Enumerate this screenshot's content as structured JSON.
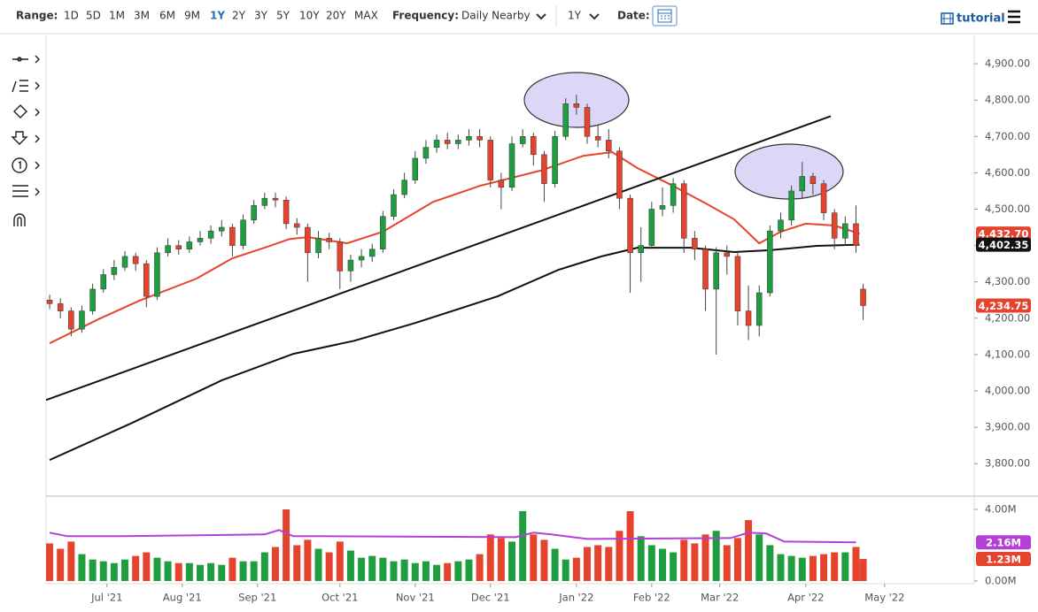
{
  "toolbar": {
    "range_label": "Range:",
    "ranges": [
      "1D",
      "5D",
      "1M",
      "3M",
      "6M",
      "9M",
      "1Y",
      "2Y",
      "3Y",
      "5Y",
      "10Y",
      "20Y",
      "MAX"
    ],
    "active_range": 6,
    "frequency_label": "Frequency:",
    "frequency": "Daily Nearby",
    "period": "1Y",
    "date_label": "Date:",
    "tutorial": "tutorial"
  },
  "chart_data": {
    "type": "candlestick",
    "x": [
      0,
      3,
      6,
      9,
      12,
      15,
      18,
      21,
      24,
      27,
      30,
      33,
      36,
      39,
      42,
      45,
      48,
      51,
      54,
      57,
      60,
      63,
      66,
      69,
      72,
      75,
      78,
      81,
      84,
      87,
      90,
      93,
      96,
      99,
      102,
      105,
      108,
      111,
      114,
      117,
      120,
      123,
      126,
      129,
      132,
      135,
      138,
      141,
      144,
      147,
      150,
      153,
      156,
      159,
      162,
      165,
      168,
      171,
      174,
      177,
      180,
      183,
      186,
      189,
      192,
      195,
      198,
      201,
      204,
      207,
      210,
      213,
      216,
      219,
      222,
      225,
      227
    ],
    "open": [
      4250,
      4240,
      4220,
      4170,
      4220,
      4280,
      4320,
      4340,
      4370,
      4350,
      4260,
      4380,
      4400,
      4390,
      4410,
      4420,
      4440,
      4450,
      4400,
      4470,
      4510,
      4530,
      4525,
      4460,
      4450,
      4380,
      4420,
      4410,
      4330,
      4360,
      4370,
      4390,
      4480,
      4540,
      4580,
      4640,
      4670,
      4690,
      4680,
      4690,
      4700,
      4690,
      4580,
      4560,
      4680,
      4700,
      4650,
      4570,
      4700,
      4790,
      4780,
      4700,
      4690,
      4660,
      4530,
      4380,
      4400,
      4500,
      4510,
      4570,
      4420,
      4390,
      4280,
      4380,
      4370,
      4220,
      4180,
      4270,
      4440,
      4470,
      4550,
      4590,
      4570,
      4490,
      4420,
      4460,
      4280
    ],
    "high": [
      4265,
      4255,
      4230,
      4235,
      4295,
      4335,
      4360,
      4385,
      4380,
      4360,
      4395,
      4420,
      4415,
      4425,
      4440,
      4455,
      4470,
      4460,
      4485,
      4525,
      4545,
      4545,
      4535,
      4475,
      4460,
      4440,
      4435,
      4420,
      4375,
      4390,
      4405,
      4495,
      4555,
      4600,
      4660,
      4690,
      4705,
      4710,
      4705,
      4720,
      4720,
      4700,
      4600,
      4700,
      4720,
      4710,
      4660,
      4715,
      4805,
      4815,
      4790,
      4730,
      4720,
      4670,
      4540,
      4450,
      4520,
      4560,
      4585,
      4580,
      4440,
      4400,
      4395,
      4400,
      4380,
      4290,
      4290,
      4455,
      4490,
      4565,
      4630,
      4600,
      4580,
      4500,
      4480,
      4510,
      4295
    ],
    "low": [
      4225,
      4200,
      4150,
      4160,
      4210,
      4270,
      4305,
      4330,
      4330,
      4230,
      4250,
      4370,
      4375,
      4380,
      4400,
      4405,
      4425,
      4370,
      4390,
      4460,
      4500,
      4505,
      4445,
      4430,
      4300,
      4365,
      4390,
      4280,
      4300,
      4340,
      4355,
      4380,
      4470,
      4530,
      4570,
      4625,
      4655,
      4665,
      4665,
      4675,
      4670,
      4560,
      4500,
      4550,
      4670,
      4620,
      4520,
      4560,
      4690,
      4760,
      4680,
      4670,
      4640,
      4500,
      4270,
      4300,
      4390,
      4480,
      4490,
      4380,
      4360,
      4220,
      4100,
      4320,
      4180,
      4140,
      4150,
      4260,
      4420,
      4455,
      4530,
      4540,
      4470,
      4390,
      4400,
      4380,
      4195
    ],
    "close": [
      4240,
      4220,
      4170,
      4220,
      4280,
      4320,
      4340,
      4370,
      4350,
      4260,
      4380,
      4400,
      4390,
      4410,
      4420,
      4440,
      4450,
      4400,
      4470,
      4510,
      4530,
      4525,
      4460,
      4450,
      4380,
      4420,
      4410,
      4330,
      4360,
      4370,
      4390,
      4480,
      4540,
      4580,
      4640,
      4670,
      4690,
      4680,
      4690,
      4700,
      4690,
      4580,
      4560,
      4680,
      4700,
      4650,
      4570,
      4700,
      4790,
      4780,
      4700,
      4690,
      4660,
      4530,
      4380,
      4400,
      4500,
      4510,
      4570,
      4420,
      4390,
      4280,
      4380,
      4370,
      4220,
      4180,
      4270,
      4440,
      4470,
      4550,
      4590,
      4570,
      4490,
      4420,
      4460,
      4400,
      4234.75
    ],
    "volume": [
      2.1,
      1.8,
      2.2,
      1.5,
      1.2,
      1.1,
      1.0,
      1.2,
      1.4,
      1.6,
      1.3,
      1.1,
      1.0,
      1.0,
      0.9,
      1.0,
      0.9,
      1.3,
      1.1,
      1.1,
      1.6,
      1.9,
      4.0,
      2.0,
      2.3,
      1.8,
      1.6,
      2.2,
      1.7,
      1.3,
      1.4,
      1.3,
      1.1,
      1.2,
      1.0,
      1.1,
      0.9,
      1.0,
      1.1,
      1.2,
      1.5,
      2.6,
      2.4,
      2.2,
      3.9,
      2.6,
      2.3,
      1.8,
      1.2,
      1.3,
      1.9,
      2.0,
      1.9,
      2.8,
      3.9,
      2.5,
      2.0,
      1.8,
      1.6,
      2.3,
      2.1,
      2.6,
      2.8,
      2.0,
      2.4,
      3.4,
      2.6,
      2.0,
      1.5,
      1.4,
      1.3,
      1.4,
      1.5,
      1.6,
      1.6,
      1.9,
      1.23
    ],
    "up_color": "#1e9e3e",
    "down_color": "#e5432d",
    "overlays": [
      {
        "color": "#e8432c",
        "x": [
          0,
          14,
          25,
          41,
          51,
          60,
          67,
          72,
          83,
          93,
          107,
          120,
          137,
          149,
          157,
          164,
          174,
          184,
          191,
          198,
          204,
          211,
          219,
          226
        ],
        "values": [
          4131,
          4199,
          4248,
          4309,
          4365,
          4394,
          4418,
          4423,
          4406,
          4438,
          4520,
          4564,
          4606,
          4647,
          4657,
          4613,
          4564,
          4511,
          4472,
          4406,
          4438,
          4460,
          4455,
          4432.7
        ]
      },
      {
        "color": "#111111",
        "x": [
          0,
          23,
          48,
          68,
          85,
          102,
          125,
          142,
          154,
          164,
          179,
          191,
          201,
          214,
          226
        ],
        "values": [
          3810,
          3912,
          4029,
          4102,
          4138,
          4187,
          4260,
          4333,
          4370,
          4394,
          4394,
          4382,
          4387,
          4399,
          4402.35
        ]
      },
      {
        "color": "#111111",
        "x": [
          -1,
          218
        ],
        "values": [
          3975,
          4756
        ]
      }
    ],
    "volume_ma": {
      "color": "#b43fd8",
      "x": [
        0,
        5,
        20,
        60,
        64,
        68,
        75,
        130,
        135,
        140,
        150,
        190,
        195,
        200,
        205,
        225
      ],
      "values": [
        2.7,
        2.5,
        2.5,
        2.6,
        2.85,
        2.5,
        2.5,
        2.45,
        2.7,
        2.6,
        2.35,
        2.4,
        2.7,
        2.65,
        2.2,
        2.16
      ]
    },
    "price_labels": [
      {
        "value": 4432.7,
        "label": "4,432.70",
        "color": "#e5432d"
      },
      {
        "value": 4402.35,
        "label": "4,402.35",
        "color": "#111111"
      },
      {
        "value": 4234.75,
        "label": "4,234.75",
        "color": "#e5432d"
      }
    ],
    "volume_labels": [
      {
        "value": 2.16,
        "label": "2.16M",
        "color": "#b43fd8"
      },
      {
        "value": 1.23,
        "label": "1.23M",
        "color": "#e5432d"
      }
    ],
    "xlim": [
      -1,
      258
    ],
    "ylim": [
      3713,
      4978
    ],
    "volume_ylim": [
      -0.15,
      4.69
    ],
    "xticks": [
      {
        "value": 16,
        "label": "Jul '21"
      },
      {
        "value": 37,
        "label": "Aug '21"
      },
      {
        "value": 58,
        "label": "Sep '21"
      },
      {
        "value": 81,
        "label": "Oct '21"
      },
      {
        "value": 102,
        "label": "Nov '21"
      },
      {
        "value": 123,
        "label": "Dec '21"
      },
      {
        "value": 147,
        "label": "Jan '22"
      },
      {
        "value": 168,
        "label": "Feb '22"
      },
      {
        "value": 187,
        "label": "Mar '22"
      },
      {
        "value": 211,
        "label": "Apr '22"
      },
      {
        "value": 233,
        "label": "May '22"
      }
    ],
    "yticks": [
      {
        "value": 3800,
        "label": "3,800.00"
      },
      {
        "value": 3900,
        "label": "3,900.00"
      },
      {
        "value": 4000,
        "label": "4,000.00"
      },
      {
        "value": 4100,
        "label": "4,100.00"
      },
      {
        "value": 4200,
        "label": "4,200.00"
      },
      {
        "value": 4300,
        "label": "4,300.00"
      },
      {
        "value": 4400,
        "label": "4,400.00"
      },
      {
        "value": 4500,
        "label": "4,500.00"
      },
      {
        "value": 4600,
        "label": "4,600.00"
      },
      {
        "value": 4700,
        "label": "4,700.00"
      },
      {
        "value": 4800,
        "label": "4,800.00"
      },
      {
        "value": 4900,
        "label": "4,900.00"
      }
    ],
    "volume_ticks": [
      {
        "value": 0,
        "label": "0.00M"
      },
      {
        "value": 4,
        "label": "4.00M"
      }
    ],
    "grid": false
  }
}
